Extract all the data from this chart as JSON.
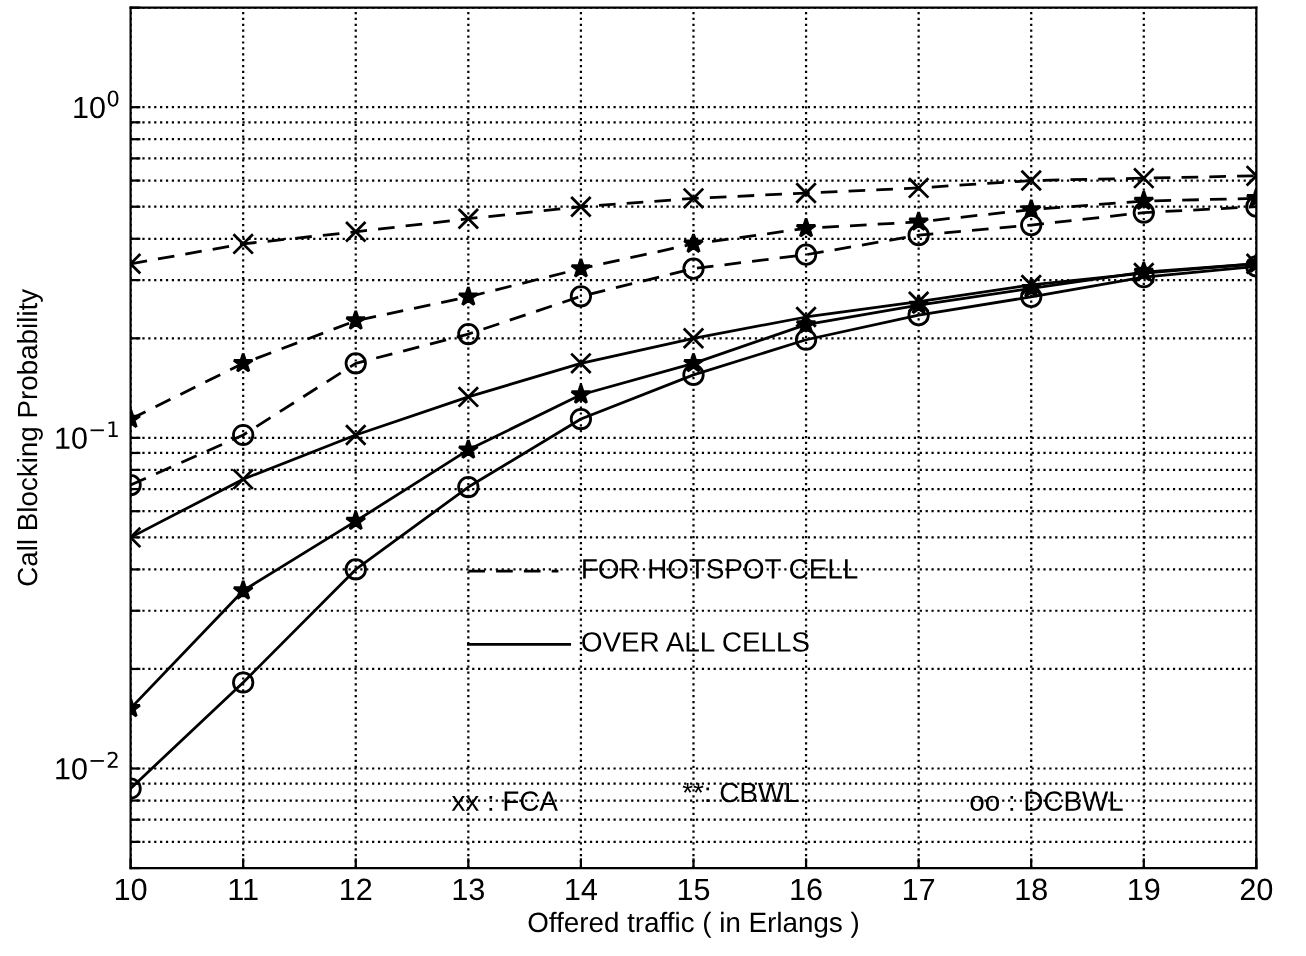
{
  "chart_data": {
    "type": "line",
    "xlabel": "Offered traffic ( in Erlangs )",
    "ylabel": "Call Blocking Probability",
    "x": [
      10,
      11,
      12,
      13,
      14,
      15,
      16,
      17,
      18,
      19,
      20
    ],
    "series": [
      {
        "color": "#000000",
        "marker": "cross",
        "line_style": "dashed",
        "values": [
          0.336,
          0.386,
          0.42,
          0.46,
          0.5,
          0.53,
          0.55,
          0.57,
          0.6,
          0.61,
          0.62
        ]
      },
      {
        "color": "#000000",
        "marker": "star",
        "line_style": "dashed",
        "values": [
          0.114,
          0.168,
          0.226,
          0.267,
          0.325,
          0.386,
          0.43,
          0.45,
          0.49,
          0.52,
          0.53
        ]
      },
      {
        "color": "#000000",
        "marker": "circle",
        "line_style": "dashed",
        "values": [
          0.072,
          0.102,
          0.168,
          0.206,
          0.268,
          0.325,
          0.358,
          0.41,
          0.44,
          0.48,
          0.5
        ]
      },
      {
        "color": "#000000",
        "marker": "cross",
        "line_style": "solid",
        "values": [
          0.05,
          0.075,
          0.102,
          0.133,
          0.168,
          0.2,
          0.232,
          0.258,
          0.29,
          0.315,
          0.336
        ]
      },
      {
        "color": "#000000",
        "marker": "star",
        "line_style": "solid",
        "values": [
          0.0152,
          0.0345,
          0.056,
          0.092,
          0.135,
          0.168,
          0.22,
          0.252,
          0.283,
          0.317,
          0.336
        ]
      },
      {
        "color": "#000000",
        "marker": "circle",
        "line_style": "solid",
        "values": [
          0.0087,
          0.0182,
          0.04,
          0.071,
          0.114,
          0.155,
          0.198,
          0.235,
          0.267,
          0.306,
          0.33
        ]
      }
    ],
    "log": "y",
    "xlim": [
      10,
      20
    ],
    "ylim": [
      0.005,
      2
    ],
    "xticks": [
      10,
      11,
      12,
      13,
      14,
      15,
      16,
      17,
      18,
      19,
      20
    ],
    "yticks": [
      {
        "value": 0.005,
        "label": null
      },
      {
        "value": 0.006,
        "label": null
      },
      {
        "value": 0.007,
        "label": null
      },
      {
        "value": 0.008,
        "label": null
      },
      {
        "value": 0.009,
        "label": null
      },
      {
        "value": 0.01,
        "label": "10$^{−2}$"
      },
      {
        "value": 0.02,
        "label": null
      },
      {
        "value": 0.03,
        "label": null
      },
      {
        "value": 0.04,
        "label": null
      },
      {
        "value": 0.05,
        "label": null
      },
      {
        "value": 0.06,
        "label": null
      },
      {
        "value": 0.07,
        "label": null
      },
      {
        "value": 0.08,
        "label": null
      },
      {
        "value": 0.09,
        "label": null
      },
      {
        "value": 0.1,
        "label": "10$^{−1}$"
      },
      {
        "value": 0.2,
        "label": null
      },
      {
        "value": 0.3,
        "label": null
      },
      {
        "value": 0.4,
        "label": null
      },
      {
        "value": 0.5,
        "label": null
      },
      {
        "value": 0.6,
        "label": null
      },
      {
        "value": 0.7,
        "label": null
      },
      {
        "value": 0.8,
        "label": null
      },
      {
        "value": 0.9,
        "label": null
      },
      {
        "value": 1,
        "label": "10$^{0}$"
      },
      {
        "value": 2,
        "label": null
      }
    ],
    "grid": true,
    "annotations": [
      "FOR HOTSPOT CELL",
      "OVER ALL CELLS",
      "xx : FCA",
      "**: CBWL",
      "oo : DCBWL"
    ]
  }
}
